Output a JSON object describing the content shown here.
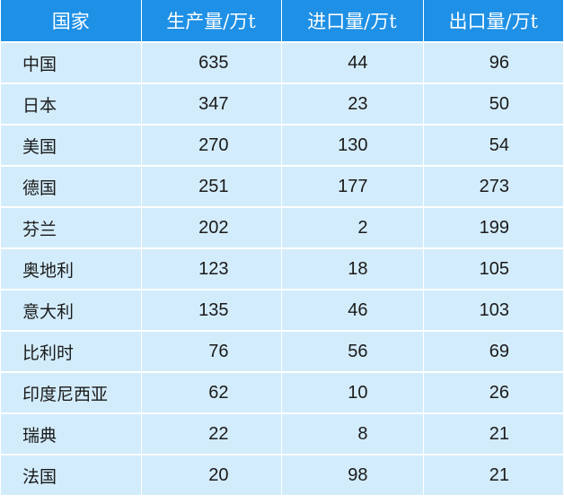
{
  "table": {
    "headers": {
      "country": "国家",
      "production": "生产量/万t",
      "imports": "进口量/万t",
      "exports": "出口量/万t"
    },
    "rows": [
      {
        "country": "中国",
        "production": "635",
        "imports": "44",
        "exports": "96"
      },
      {
        "country": "日本",
        "production": "347",
        "imports": "23",
        "exports": "50"
      },
      {
        "country": "美国",
        "production": "270",
        "imports": "130",
        "exports": "54"
      },
      {
        "country": "德国",
        "production": "251",
        "imports": "177",
        "exports": "273"
      },
      {
        "country": "芬兰",
        "production": "202",
        "imports": "2",
        "exports": "199"
      },
      {
        "country": "奥地利",
        "production": "123",
        "imports": "18",
        "exports": "105"
      },
      {
        "country": "意大利",
        "production": "135",
        "imports": "46",
        "exports": "103"
      },
      {
        "country": "比利时",
        "production": "76",
        "imports": "56",
        "exports": "69"
      },
      {
        "country": "印度尼西亚",
        "production": "62",
        "imports": "10",
        "exports": "26"
      },
      {
        "country": "瑞典",
        "production": "22",
        "imports": "8",
        "exports": "21"
      },
      {
        "country": "法国",
        "production": "20",
        "imports": "98",
        "exports": "21"
      }
    ]
  },
  "colors": {
    "header_bg": "#1e90e6",
    "header_text": "#ffffff",
    "cell_bg": "#d3ecfb",
    "cell_text": "#1a1a1a",
    "grid_line": "#ffffff"
  }
}
